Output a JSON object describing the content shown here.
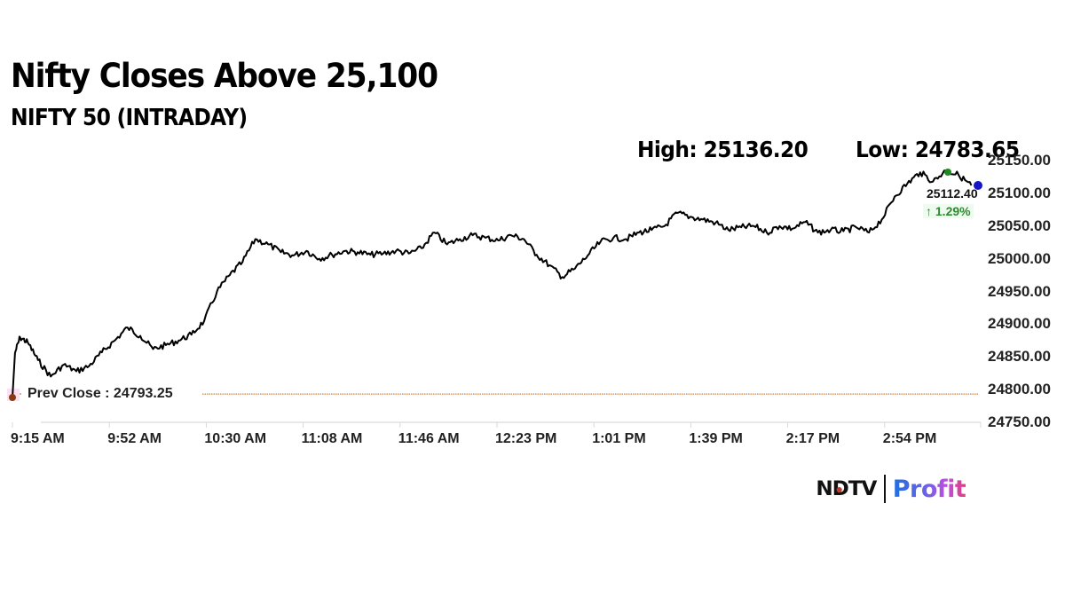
{
  "headline": "Nifty Closes Above 25,100",
  "subtitle": "NIFTY 50 (INTRADAY)",
  "stats": {
    "high_label": "High: 25136.20",
    "low_label": "Low: 24783.65"
  },
  "last": {
    "value": "25112.40",
    "change": "↑ 1.29%",
    "change_color": "#2e8b2e"
  },
  "prev_close": {
    "label": "Prev Close : 24793.25",
    "value": 24793.25,
    "line_color": "#b5651d",
    "marker_color": "#8b3a0f"
  },
  "brand": {
    "ndtv": "NDTV",
    "profit": "Profit"
  },
  "colors": {
    "line": "#000000",
    "high_marker": "#1f8a1f",
    "last_marker": "#1414c8",
    "axis": "#d9d9d9"
  },
  "chart_data": {
    "type": "line",
    "title": "NIFTY 50 (INTRADAY)",
    "subtitle": "Nifty Closes Above 25,100",
    "xlabel": "",
    "ylabel": "",
    "ylim": [
      24750,
      25150
    ],
    "yticks": [
      "25150.00",
      "25100.00",
      "25050.00",
      "25000.00",
      "24950.00",
      "24900.00",
      "24850.00",
      "24800.00",
      "24750.00"
    ],
    "xticks": [
      "9:15 AM",
      "9:52 AM",
      "10:30 AM",
      "11:08 AM",
      "11:46 AM",
      "12:23 PM",
      "1:01 PM",
      "1:39 PM",
      "2:17 PM",
      "2:54 PM"
    ],
    "grid": false,
    "legend": "none",
    "annotations": [
      "High: 25136.20",
      "Low: 24783.65",
      "Prev Close : 24793.25",
      "25112.40",
      "↑ 1.29%"
    ],
    "high": 25136.2,
    "low": 24783.65,
    "prev_close": 24793.25,
    "last": 25112.4,
    "change_pct": 1.29,
    "series": [
      {
        "name": "NIFTY 50",
        "x_minutes_from_915": [
          0,
          1,
          3,
          6,
          10,
          15,
          20,
          25,
          30,
          35,
          40,
          45,
          50,
          55,
          60,
          65,
          70,
          75,
          80,
          85,
          90,
          95,
          100,
          105,
          110,
          115,
          120,
          125,
          130,
          135,
          140,
          145,
          150,
          155,
          160,
          165,
          170,
          175,
          180,
          185,
          190,
          195,
          200,
          205,
          210,
          215,
          220,
          225,
          230,
          235,
          240,
          245,
          250,
          255,
          260,
          265,
          270,
          275,
          280,
          285,
          290,
          295,
          300,
          305,
          310,
          315,
          320,
          325,
          330,
          335,
          340,
          345,
          350,
          355,
          360,
          365,
          370,
          375
        ],
        "values": [
          24788,
          24856,
          24880,
          24872,
          24845,
          24820,
          24838,
          24828,
          24836,
          24857,
          24875,
          24895,
          24882,
          24862,
          24868,
          24875,
          24884,
          24905,
          24950,
          24975,
          24995,
          25030,
          25022,
          25010,
          25005,
          25012,
          25000,
          25006,
          25012,
          25010,
          25006,
          25008,
          25012,
          25008,
          25016,
          25040,
          25022,
          25030,
          25036,
          25032,
          25028,
          25036,
          25030,
          25006,
          24990,
          24972,
          24985,
          25005,
          25026,
          25032,
          25030,
          25040,
          25044,
          25050,
          25070,
          25064,
          25060,
          25055,
          25044,
          25048,
          25050,
          25040,
          25050,
          25046,
          25056,
          25040,
          25044,
          25042,
          25048,
          25040,
          25060,
          25095,
          25115,
          25132,
          25118,
          25135,
          25128,
          25112
        ]
      }
    ]
  }
}
